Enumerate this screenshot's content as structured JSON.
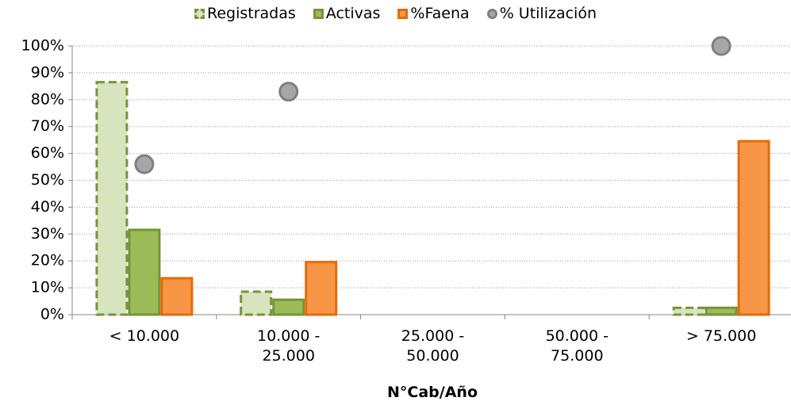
{
  "chart_data": {
    "type": "bar",
    "categories": [
      "< 10.000",
      "10.000 -\n25.000",
      "25.000 -\n50.000",
      "50.000 -\n75.000",
      "> 75.000"
    ],
    "x_label": "N°Cab/Año",
    "series": [
      {
        "name": "Registradas",
        "kind": "bar",
        "color": "#d7e4bd",
        "stroke": "#77933c",
        "dashed": true,
        "values": [
          87,
          9,
          0,
          0,
          3
        ]
      },
      {
        "name": "Activas",
        "kind": "bar",
        "color": "#9bbb59",
        "stroke": "#77933c",
        "dashed": false,
        "values": [
          32,
          6,
          0,
          0,
          3
        ]
      },
      {
        "name": "%Faena",
        "kind": "bar",
        "color": "#f79646",
        "stroke": "#e46c0a",
        "dashed": false,
        "values": [
          14,
          20,
          0,
          0,
          65
        ]
      },
      {
        "name": "% Utilización",
        "kind": "scatter",
        "color": "#a6a6a6",
        "stroke": "#7f7f7f",
        "dashed": false,
        "values": [
          56,
          83,
          null,
          null,
          100
        ]
      }
    ],
    "ylim": [
      0,
      100
    ],
    "yticks": [
      {
        "value": 0,
        "label": "0%"
      },
      {
        "value": 10,
        "label": "10%"
      },
      {
        "value": 20,
        "label": "20%"
      },
      {
        "value": 30,
        "label": "30%"
      },
      {
        "value": 40,
        "label": "40%"
      },
      {
        "value": 50,
        "label": "50%"
      },
      {
        "value": 60,
        "label": "60%"
      },
      {
        "value": 70,
        "label": "70%"
      },
      {
        "value": 80,
        "label": "80%"
      },
      {
        "value": 90,
        "label": "90%"
      },
      {
        "value": 100,
        "label": "100%"
      }
    ],
    "grid": true
  }
}
